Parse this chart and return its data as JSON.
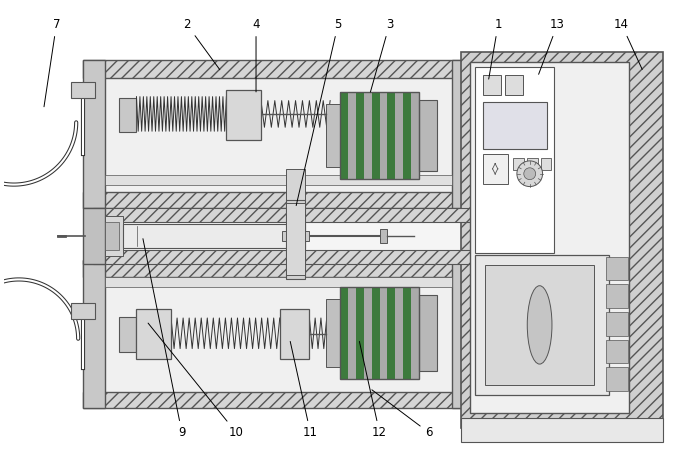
{
  "fig_width": 6.83,
  "fig_height": 4.67,
  "dpi": 100,
  "bg_color": "#ffffff",
  "lc": "#555555",
  "lc2": "#333333",
  "hatch_fc": "#d0d0d0",
  "inner_fc": "#f2f2f2",
  "spring_fc": "#c8c8c8",
  "motor_green": "#4a7a4a",
  "motor_gray": "#909090",
  "ctrl_fc": "#f5f5f5",
  "green_stripe": "#3d7a3d",
  "gray_stripe": "#aaaaaa"
}
